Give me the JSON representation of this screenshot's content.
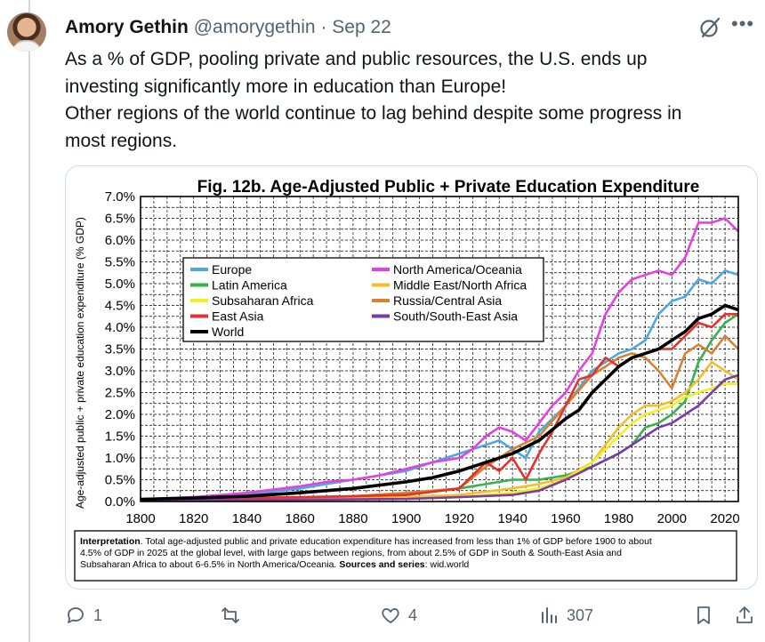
{
  "tweet": {
    "author_name": "Amory Gethin",
    "handle": "@amorygethin",
    "separator": "·",
    "date": "Sep 22",
    "lines": [
      "As a % of GDP, pooling private and public resources, the U.S. ends up",
      "investing significantly more in education than Europe!",
      "Other regions of the world continue to lag behind despite some progress in",
      "most regions."
    ]
  },
  "icons": {
    "avatar": "avatar-photo",
    "grok": "grok-icon",
    "more": "more-icon",
    "reply": "reply-icon",
    "retweet": "retweet-icon",
    "like": "like-icon",
    "views": "views-icon",
    "bookmark": "bookmark-icon",
    "share": "share-icon"
  },
  "actions": {
    "replies": "1",
    "retweets": "",
    "likes": "4",
    "views": "307"
  },
  "chart_data": {
    "type": "line",
    "title": "Fig. 12b. Age-Adjusted Public + Private Education Expenditure",
    "ylabel": "Age-adjusted public + private education expenditure (% GDP)",
    "xlabel": "",
    "xlim": [
      1800,
      2025
    ],
    "ylim": [
      0,
      7
    ],
    "x_ticks": [
      "1800",
      "1820",
      "1840",
      "1860",
      "1880",
      "1900",
      "1920",
      "1940",
      "1960",
      "1980",
      "2000",
      "2020"
    ],
    "y_ticks": [
      "0.0%",
      "0.5%",
      "1.0%",
      "1.5%",
      "2.0%",
      "2.5%",
      "3.0%",
      "3.5%",
      "4.0%",
      "4.5%",
      "5.0%",
      "5.5%",
      "6.0%",
      "6.5%",
      "7.0%"
    ],
    "grid": true,
    "legend_position": "upper-left",
    "series": [
      {
        "name": "Europe",
        "color": "#4ba8e0",
        "x": [
          1800,
          1820,
          1840,
          1860,
          1870,
          1880,
          1890,
          1900,
          1910,
          1920,
          1930,
          1935,
          1940,
          1945,
          1950,
          1955,
          1960,
          1965,
          1970,
          1975,
          1980,
          1985,
          1990,
          1995,
          2000,
          2005,
          2010,
          2015,
          2020,
          2025
        ],
        "y": [
          0.05,
          0.1,
          0.15,
          0.3,
          0.4,
          0.5,
          0.6,
          0.7,
          0.9,
          1.1,
          1.3,
          1.4,
          1.2,
          1.0,
          1.6,
          1.9,
          2.2,
          2.6,
          3.0,
          3.2,
          3.4,
          3.5,
          3.7,
          4.3,
          4.6,
          4.7,
          5.1,
          5.0,
          5.3,
          5.2
        ]
      },
      {
        "name": "North America/Oceania",
        "color": "#e640e0",
        "x": [
          1800,
          1820,
          1840,
          1860,
          1870,
          1880,
          1890,
          1900,
          1910,
          1920,
          1925,
          1930,
          1935,
          1940,
          1945,
          1950,
          1955,
          1960,
          1965,
          1970,
          1975,
          1980,
          1985,
          1990,
          1995,
          2000,
          2005,
          2010,
          2015,
          2020,
          2025
        ],
        "y": [
          0.05,
          0.1,
          0.2,
          0.35,
          0.45,
          0.5,
          0.6,
          0.75,
          0.9,
          1.0,
          1.2,
          1.5,
          1.7,
          1.6,
          1.4,
          1.8,
          2.2,
          2.5,
          3.0,
          3.4,
          4.3,
          4.8,
          5.1,
          5.2,
          5.3,
          5.2,
          5.6,
          6.4,
          6.4,
          6.5,
          6.2
        ]
      },
      {
        "name": "Latin America",
        "color": "#34b34a",
        "x": [
          1800,
          1840,
          1880,
          1900,
          1920,
          1930,
          1940,
          1950,
          1960,
          1970,
          1980,
          1985,
          1990,
          1995,
          2000,
          2005,
          2010,
          2015,
          2020,
          2025
        ],
        "y": [
          0.02,
          0.05,
          0.1,
          0.15,
          0.3,
          0.4,
          0.5,
          0.5,
          0.6,
          0.8,
          1.1,
          1.3,
          1.7,
          1.8,
          2.0,
          2.3,
          3.2,
          3.7,
          4.1,
          4.3
        ]
      },
      {
        "name": "Middle East/North Africa",
        "color": "#f5bd28",
        "x": [
          1800,
          1840,
          1880,
          1900,
          1920,
          1940,
          1950,
          1960,
          1970,
          1980,
          1985,
          1990,
          1995,
          2000,
          2005,
          2010,
          2015,
          2020,
          2025
        ],
        "y": [
          0.02,
          0.04,
          0.08,
          0.1,
          0.15,
          0.3,
          0.4,
          0.55,
          0.9,
          1.7,
          2.0,
          2.2,
          2.2,
          2.3,
          2.5,
          2.8,
          3.2,
          3.0,
          2.8
        ]
      },
      {
        "name": "Subsaharan Africa",
        "color": "#f0f020",
        "x": [
          1800,
          1840,
          1880,
          1900,
          1920,
          1940,
          1950,
          1960,
          1970,
          1980,
          1985,
          1990,
          1995,
          2000,
          2005,
          2010,
          2015,
          2020,
          2025
        ],
        "y": [
          0.02,
          0.03,
          0.05,
          0.07,
          0.1,
          0.2,
          0.3,
          0.5,
          0.9,
          1.5,
          1.8,
          2.0,
          2.1,
          2.2,
          2.4,
          2.5,
          2.6,
          2.7,
          2.7
        ]
      },
      {
        "name": "Russia/Central Asia",
        "color": "#d9812f",
        "x": [
          1800,
          1840,
          1880,
          1900,
          1920,
          1930,
          1940,
          1950,
          1960,
          1970,
          1975,
          1980,
          1985,
          1990,
          1995,
          2000,
          2005,
          2010,
          2015,
          2020,
          2025
        ],
        "y": [
          0.03,
          0.06,
          0.12,
          0.2,
          0.3,
          0.8,
          1.2,
          1.5,
          2.2,
          2.9,
          3.1,
          3.3,
          3.4,
          3.3,
          3.0,
          2.6,
          3.4,
          3.6,
          3.4,
          3.8,
          3.5
        ]
      },
      {
        "name": "East Asia",
        "color": "#e8302b",
        "x": [
          1800,
          1840,
          1880,
          1900,
          1920,
          1925,
          1930,
          1935,
          1940,
          1945,
          1950,
          1955,
          1960,
          1965,
          1970,
          1975,
          1980,
          1985,
          1990,
          1995,
          2000,
          2005,
          2010,
          2015,
          2020,
          2025
        ],
        "y": [
          0.05,
          0.08,
          0.12,
          0.15,
          0.3,
          0.6,
          0.9,
          0.7,
          1.0,
          0.5,
          1.1,
          1.6,
          2.2,
          2.8,
          2.9,
          3.3,
          3.1,
          3.3,
          3.4,
          3.5,
          3.5,
          3.8,
          4.1,
          4.0,
          4.3,
          4.3
        ]
      },
      {
        "name": "South/South-East Asia",
        "color": "#7a3aa8",
        "x": [
          1800,
          1840,
          1880,
          1900,
          1920,
          1940,
          1950,
          1960,
          1970,
          1980,
          1985,
          1990,
          1995,
          2000,
          2005,
          2010,
          2015,
          2020,
          2025
        ],
        "y": [
          0.02,
          0.03,
          0.05,
          0.06,
          0.1,
          0.15,
          0.25,
          0.5,
          0.8,
          1.1,
          1.3,
          1.5,
          1.7,
          1.8,
          2.0,
          2.2,
          2.5,
          2.8,
          2.9
        ]
      },
      {
        "name": "World",
        "color": "#000000",
        "x": [
          1800,
          1820,
          1840,
          1860,
          1880,
          1900,
          1910,
          1920,
          1930,
          1940,
          1950,
          1960,
          1965,
          1970,
          1975,
          1980,
          1985,
          1990,
          1995,
          2000,
          2005,
          2010,
          2015,
          2020,
          2025
        ],
        "y": [
          0.05,
          0.08,
          0.12,
          0.2,
          0.3,
          0.45,
          0.55,
          0.7,
          0.9,
          1.1,
          1.4,
          1.9,
          2.1,
          2.5,
          2.8,
          3.1,
          3.3,
          3.4,
          3.5,
          3.7,
          3.9,
          4.2,
          4.3,
          4.5,
          4.4
        ]
      }
    ],
    "interpretation": {
      "label": "Interpretation",
      "lines": [
        ". Total age-adjusted public and private education expenditure has increased from less than 1% of GDP before 1900 to about",
        "4.5% of GDP in 2025 at the global level, with large gaps between regions, from  about 2.5% of GDP in South & South-East Asia and",
        "Subsaharan Africa to about 6-6.5% in North America/Oceania."
      ],
      "sources_label": "Sources and series",
      "sources_value": ": wid.world"
    }
  }
}
